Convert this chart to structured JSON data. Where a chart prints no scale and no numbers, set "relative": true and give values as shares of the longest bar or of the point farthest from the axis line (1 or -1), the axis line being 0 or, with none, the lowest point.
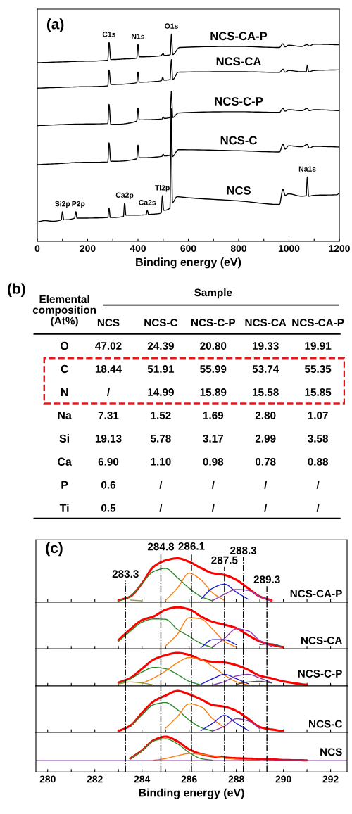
{
  "chart_data": [
    {
      "type": "line",
      "title": "(a)",
      "xlabel": "Binding energy (eV)",
      "relative": true,
      "line_style": "solid",
      "xlim": [
        0,
        1200
      ],
      "xticks": [
        0,
        {
          "value": 100,
          "label": null
        },
        200,
        {
          "value": 300,
          "label": null
        },
        400,
        {
          "value": 500,
          "label": null
        },
        600,
        {
          "value": 700,
          "label": null
        },
        800,
        {
          "value": 900,
          "label": null
        },
        1000,
        {
          "value": 1100,
          "label": null
        },
        1200
      ],
      "series": [
        {
          "name": "NCS-CA-P",
          "color": "#000000",
          "x": [
            0,
            150,
            280,
            285,
            292,
            350,
            395,
            400,
            405,
            490,
            500,
            505,
            528,
            533,
            538,
            565,
            800,
            962,
            976,
            985,
            998,
            1050,
            1072,
            1080,
            1100,
            1200
          ],
          "values": [
            0.862,
            0.868,
            0.874,
            0.96,
            0.877,
            0.88,
            0.884,
            0.95,
            0.89,
            0.895,
            0.905,
            0.897,
            0.9,
            1.0,
            0.901,
            0.935,
            0.94,
            0.935,
            0.953,
            0.938,
            0.946,
            0.94,
            0.949,
            0.943,
            0.951,
            0.948
          ]
        },
        {
          "name": "NCS-CA",
          "color": "#000000",
          "x": [
            0,
            150,
            280,
            285,
            292,
            395,
            400,
            405,
            493,
            498,
            503,
            527,
            533,
            538,
            560,
            800,
            962,
            976,
            985,
            998,
            1050,
            1068,
            1073,
            1078,
            1100,
            1200
          ],
          "values": [
            0.739,
            0.745,
            0.75,
            0.826,
            0.757,
            0.765,
            0.816,
            0.768,
            0.775,
            0.791,
            0.778,
            0.78,
            0.877,
            0.78,
            0.816,
            0.818,
            0.815,
            0.83,
            0.816,
            0.824,
            0.818,
            0.818,
            0.849,
            0.818,
            0.824,
            0.827
          ]
        },
        {
          "name": "NCS-C-P",
          "color": "#000000",
          "x": [
            0,
            150,
            280,
            285,
            292,
            395,
            400,
            405,
            495,
            500,
            505,
            527,
            533,
            538,
            560,
            800,
            962,
            976,
            985,
            998,
            1050,
            1073,
            1080,
            1100,
            1200
          ],
          "values": [
            0.558,
            0.565,
            0.568,
            0.66,
            0.564,
            0.58,
            0.643,
            0.586,
            0.59,
            0.6,
            0.593,
            0.597,
            0.724,
            0.597,
            0.619,
            0.625,
            0.622,
            0.641,
            0.628,
            0.635,
            0.63,
            0.641,
            0.63,
            0.635,
            0.63
          ]
        },
        {
          "name": "NCS-C",
          "color": "#000000",
          "x": [
            0,
            100,
            150,
            280,
            285,
            292,
            395,
            400,
            405,
            495,
            500,
            505,
            527,
            532,
            537,
            560,
            800,
            962,
            976,
            985,
            998,
            1050,
            1073,
            1080,
            1100,
            1200
          ],
          "values": [
            0.37,
            0.376,
            0.38,
            0.383,
            0.475,
            0.386,
            0.398,
            0.464,
            0.403,
            0.41,
            0.42,
            0.412,
            0.415,
            0.568,
            0.409,
            0.442,
            0.437,
            0.431,
            0.467,
            0.445,
            0.461,
            0.456,
            0.467,
            0.45,
            0.458,
            0.455
          ]
        },
        {
          "name": "NCS",
          "color": "#000000",
          "x": [
            0,
            30,
            60,
            95,
            100,
            105,
            148,
            153,
            158,
            280,
            285,
            290,
            342,
            347,
            352,
            432,
            437,
            442,
            470,
            492,
            497,
            502,
            527,
            532,
            537,
            555,
            600,
            800,
            962,
            976,
            985,
            998,
            1050,
            1068,
            1073,
            1078,
            1100,
            1190,
            1200
          ],
          "values": [
            0.093,
            0.1,
            0.097,
            0.104,
            0.143,
            0.104,
            0.112,
            0.143,
            0.112,
            0.115,
            0.159,
            0.115,
            0.12,
            0.185,
            0.126,
            0.128,
            0.149,
            0.13,
            0.132,
            0.137,
            0.22,
            0.15,
            0.16,
            0.641,
            0.187,
            0.215,
            0.21,
            0.195,
            0.178,
            0.251,
            0.222,
            0.229,
            0.218,
            0.22,
            0.311,
            0.218,
            0.222,
            0.225,
            0.232
          ]
        }
      ],
      "annotations": [
        {
          "text": "C1s",
          "x": 285,
          "y": 0.96
        },
        {
          "text": "N1s",
          "x": 400,
          "y": 0.95
        },
        {
          "text": "O1s",
          "x": 533,
          "y": 1.0
        },
        {
          "text": "Si2p",
          "x": 100,
          "y": 0.143
        },
        {
          "text": "P2p",
          "x": 153,
          "y": 0.143
        },
        {
          "text": "Ca2p",
          "x": 347,
          "y": 0.185
        },
        {
          "text": "Ca2s",
          "x": 437,
          "y": 0.149
        },
        {
          "text": "Ti2p",
          "x": 497,
          "y": 0.22
        },
        {
          "text": "Na1s",
          "x": 1073,
          "y": 0.311
        }
      ]
    },
    {
      "type": "other",
      "title": "(b)",
      "ylabel": "Elemental\ncomposition\n(At%)",
      "xlabel": "Sample",
      "categories": [
        "NCS",
        "NCS-C",
        "NCS-C-P",
        "NCS-CA",
        "NCS-CA-P"
      ],
      "y_categories": [
        "O",
        "C",
        "N",
        "Na",
        "Si",
        "Ca",
        "P",
        "Ti"
      ],
      "cell_labels": [
        [
          "47.02",
          "24.39",
          "20.80",
          "19.33",
          "19.91"
        ],
        [
          "18.44",
          "51.91",
          "55.99",
          "53.74",
          "55.35"
        ],
        [
          "/",
          "14.99",
          "15.89",
          "15.58",
          "15.85"
        ],
        [
          "7.31",
          "1.52",
          "1.69",
          "2.80",
          "1.07"
        ],
        [
          "19.13",
          "5.78",
          "3.17",
          "2.99",
          "3.58"
        ],
        [
          "6.90",
          "1.10",
          "0.98",
          "0.78",
          "0.88"
        ],
        [
          "0.6",
          "/",
          "/",
          "/",
          "/"
        ],
        [
          "0.5",
          "/",
          "/",
          "/",
          "/"
        ]
      ]
    },
    {
      "type": "line",
      "title": "(c)",
      "relative": true,
      "tick_labels": false,
      "xlim": [
        279.5,
        292.7
      ],
      "xticks": [
        280,
        {
          "value": 281,
          "label": null
        },
        282,
        {
          "value": 283,
          "label": null
        },
        284,
        {
          "value": 285,
          "label": null
        },
        286,
        {
          "value": 287,
          "label": null
        },
        288,
        {
          "value": 289,
          "label": null
        },
        290,
        {
          "value": 291,
          "label": null
        },
        292
      ],
      "x": [
        283,
        283.5,
        284,
        284.5,
        285,
        285.5,
        286,
        286.5,
        287,
        287.5,
        288,
        288.5,
        289,
        289.5
      ],
      "series": [
        {
          "color": "#ff0000",
          "values": [
            0.04,
            0.13,
            0.43,
            0.81,
            0.95,
            1.0,
            0.92,
            0.78,
            0.66,
            0.62,
            0.51,
            0.32,
            0.13,
            0.04
          ]
        },
        {
          "color": "#2a8a2a",
          "values": [
            0.03,
            0.13,
            0.43,
            0.7,
            0.77,
            0.56,
            0.32,
            0.13,
            0.03,
            null,
            null,
            null,
            null,
            null
          ]
        },
        {
          "color": "#ff7f0e",
          "values": [
            null,
            null,
            null,
            null,
            0.04,
            0.32,
            0.66,
            0.51,
            0.21,
            0.04,
            null,
            null,
            null,
            null
          ]
        },
        {
          "color": "#2020d0",
          "values": [
            null,
            null,
            null,
            null,
            null,
            null,
            null,
            0.07,
            0.32,
            0.41,
            0.23,
            0.07,
            null,
            null
          ]
        },
        {
          "color": "#8e3ab0",
          "values": [
            null,
            null,
            null,
            null,
            null,
            null,
            null,
            null,
            0.04,
            0.18,
            0.29,
            0.27,
            0.13,
            0.03
          ]
        },
        {
          "color": "#9a9a3a",
          "values": [
            null,
            0.05,
            0.03,
            null,
            null,
            null,
            null,
            null,
            null,
            null,
            null,
            null,
            null,
            null
          ]
        }
      ],
      "ref_lines": [
        {
          "axis": "x",
          "value": 283.3,
          "label": "283.3",
          "color": "#000000",
          "line_style": "dashdot"
        },
        {
          "axis": "x",
          "value": 284.8,
          "label": "284.8",
          "color": "#000000",
          "line_style": "dashdot"
        },
        {
          "axis": "x",
          "value": 286.1,
          "label": "286.1",
          "color": "#000000",
          "line_style": "dashdot"
        },
        {
          "axis": "x",
          "value": 287.5,
          "label": "287.5",
          "color": "#000000",
          "line_style": "dashdot"
        },
        {
          "axis": "x",
          "value": 288.3,
          "label": "288.3",
          "color": "#000000",
          "line_style": "dashdot"
        },
        {
          "axis": "x",
          "value": 289.3,
          "label": "289.3",
          "color": "#000000",
          "line_style": "dashdot"
        }
      ],
      "annotations": [
        "NCS-CA-P"
      ]
    },
    {
      "type": "line",
      "relative": true,
      "tick_labels": false,
      "xlim": [
        279.5,
        292.7
      ],
      "xticks": [
        280,
        {
          "value": 281,
          "label": null
        },
        282,
        {
          "value": 283,
          "label": null
        },
        284,
        {
          "value": 285,
          "label": null
        },
        286,
        {
          "value": 287,
          "label": null
        },
        288,
        {
          "value": 289,
          "label": null
        },
        290,
        {
          "value": 291,
          "label": null
        },
        292
      ],
      "x": [
        283,
        283.5,
        284,
        284.5,
        285,
        285.5,
        286,
        286.5,
        287,
        287.5,
        288,
        288.5,
        289,
        289.5,
        290
      ],
      "series": [
        {
          "color": "#ff0000",
          "values": [
            0.21,
            0.47,
            0.69,
            0.78,
            0.94,
            1.0,
            0.95,
            0.78,
            0.65,
            0.58,
            0.5,
            0.33,
            0.18,
            0.1,
            0.04
          ]
        },
        {
          "color": "#2a8a2a",
          "values": [
            0.18,
            0.42,
            0.64,
            0.72,
            0.71,
            0.47,
            0.3,
            0.13,
            0.03,
            null,
            null,
            null,
            null,
            null,
            null
          ]
        },
        {
          "color": "#ff7f0e",
          "values": [
            null,
            null,
            null,
            null,
            0.07,
            0.35,
            0.75,
            0.72,
            0.47,
            0.18,
            0.04,
            null,
            null,
            null,
            null
          ]
        },
        {
          "color": "#2020d0",
          "values": [
            null,
            null,
            null,
            null,
            null,
            null,
            null,
            0.03,
            0.22,
            0.22,
            0.1,
            null,
            null,
            null,
            null
          ]
        },
        {
          "color": "#8e3ab0",
          "values": [
            null,
            null,
            null,
            null,
            null,
            null,
            null,
            null,
            0.05,
            0.25,
            0.48,
            0.43,
            0.2,
            0.06,
            null
          ]
        },
        {
          "color": "#505050",
          "values": [
            null,
            null,
            null,
            null,
            null,
            null,
            null,
            null,
            null,
            null,
            null,
            null,
            0.1,
            0.12,
            0.04
          ]
        }
      ],
      "ref_lines": [
        {
          "axis": "x",
          "value": 283.3,
          "color": "#000000",
          "line_style": "dashdot"
        },
        {
          "axis": "x",
          "value": 284.8,
          "color": "#000000",
          "line_style": "dashdot"
        },
        {
          "axis": "x",
          "value": 286.1,
          "color": "#000000",
          "line_style": "dashdot"
        },
        {
          "axis": "x",
          "value": 287.5,
          "color": "#000000",
          "line_style": "dashdot"
        },
        {
          "axis": "x",
          "value": 288.3,
          "color": "#000000",
          "line_style": "dashdot"
        },
        {
          "axis": "x",
          "value": 289.3,
          "color": "#000000",
          "line_style": "dashdot"
        }
      ],
      "annotations": [
        "NCS-CA"
      ]
    },
    {
      "type": "line",
      "relative": true,
      "tick_labels": false,
      "xlim": [
        279.5,
        292.7
      ],
      "xticks": [
        280,
        {
          "value": 281,
          "label": null
        },
        282,
        {
          "value": 283,
          "label": null
        },
        284,
        {
          "value": 285,
          "label": null
        },
        286,
        {
          "value": 287,
          "label": null
        },
        288,
        {
          "value": 289,
          "label": null
        },
        290,
        {
          "value": 291,
          "label": null
        },
        292
      ],
      "x": [
        283,
        283.5,
        284,
        284.5,
        285,
        285.5,
        286,
        286.5,
        287,
        287.5,
        288,
        288.5,
        289,
        289.5,
        290,
        291
      ],
      "series": [
        {
          "color": "#ff0000",
          "values": [
            0.1,
            0.24,
            0.52,
            0.8,
            0.93,
            1.0,
            0.94,
            0.8,
            0.73,
            0.71,
            0.63,
            0.49,
            0.31,
            0.23,
            0.14,
            0.03
          ]
        },
        {
          "color": "#2a8a2a",
          "values": [
            0.07,
            0.21,
            0.42,
            0.56,
            0.52,
            0.35,
            0.14,
            0.03,
            null,
            null,
            null,
            null,
            null,
            null,
            null,
            null
          ]
        },
        {
          "color": "#ff7f0e",
          "values": [
            null,
            null,
            0.08,
            0.24,
            0.45,
            0.7,
            0.86,
            0.8,
            0.59,
            0.33,
            0.13,
            0.03,
            null,
            null,
            null,
            null
          ]
        },
        {
          "color": "#2020d0",
          "values": [
            null,
            null,
            null,
            null,
            null,
            null,
            null,
            0.05,
            0.22,
            0.35,
            0.22,
            0.07,
            null,
            null,
            null,
            null
          ]
        },
        {
          "color": "#8e3ab0",
          "values": [
            null,
            null,
            null,
            null,
            null,
            null,
            null,
            null,
            0.03,
            0.13,
            0.3,
            0.35,
            0.24,
            0.1,
            null,
            null
          ]
        },
        {
          "color": "#505050",
          "values": [
            null,
            null,
            null,
            null,
            null,
            null,
            null,
            null,
            null,
            null,
            0.05,
            0.12,
            0.14,
            0.09,
            null,
            null
          ]
        },
        {
          "color": "#9a9a3a",
          "values": [
            0.06,
            0.12,
            0.09,
            0.03,
            null,
            null,
            null,
            null,
            null,
            null,
            null,
            null,
            null,
            null,
            null,
            null
          ]
        }
      ],
      "ref_lines": [
        {
          "axis": "x",
          "value": 283.3,
          "color": "#000000",
          "line_style": "dashdot"
        },
        {
          "axis": "x",
          "value": 284.8,
          "color": "#000000",
          "line_style": "dashdot"
        },
        {
          "axis": "x",
          "value": 286.1,
          "color": "#000000",
          "line_style": "dashdot"
        },
        {
          "axis": "x",
          "value": 287.5,
          "color": "#000000",
          "line_style": "dashdot"
        },
        {
          "axis": "x",
          "value": 288.3,
          "color": "#000000",
          "line_style": "dashdot"
        },
        {
          "axis": "x",
          "value": 289.3,
          "color": "#000000",
          "line_style": "dashdot"
        }
      ],
      "annotations": [
        "NCS-C-P"
      ]
    },
    {
      "type": "line",
      "relative": true,
      "tick_labels": false,
      "xlim": [
        279.5,
        292.7
      ],
      "xticks": [
        280,
        {
          "value": 281,
          "label": null
        },
        282,
        {
          "value": 283,
          "label": null
        },
        284,
        {
          "value": 285,
          "label": null
        },
        286,
        {
          "value": 287,
          "label": null
        },
        288,
        {
          "value": 289,
          "label": null
        },
        290,
        {
          "value": 291,
          "label": null
        },
        292
      ],
      "x": [
        283,
        283.5,
        284,
        284.5,
        285,
        285.5,
        286,
        286.5,
        287,
        287.5,
        288,
        288.5,
        289,
        289.5,
        290
      ],
      "series": [
        {
          "color": "#ff0000",
          "values": [
            0.03,
            0.16,
            0.47,
            0.75,
            0.89,
            1.0,
            0.92,
            0.8,
            0.66,
            0.62,
            0.52,
            0.33,
            0.13,
            0.07,
            0.03
          ]
        },
        {
          "color": "#2a8a2a",
          "values": [
            null,
            0.13,
            0.42,
            0.67,
            0.72,
            0.55,
            0.3,
            0.12,
            0.03,
            null,
            null,
            null,
            null,
            null,
            null
          ]
        },
        {
          "color": "#ff7f0e",
          "values": [
            null,
            null,
            null,
            null,
            0.1,
            0.38,
            0.69,
            0.62,
            0.33,
            0.11,
            null,
            null,
            null,
            null,
            null
          ]
        },
        {
          "color": "#2020d0",
          "values": [
            null,
            null,
            null,
            null,
            null,
            null,
            null,
            0.04,
            0.22,
            0.41,
            0.22,
            0.05,
            null,
            null,
            null
          ]
        },
        {
          "color": "#8e3ab0",
          "values": [
            null,
            null,
            null,
            null,
            null,
            null,
            null,
            null,
            0.03,
            0.15,
            0.33,
            0.28,
            0.09,
            null,
            null
          ]
        }
      ],
      "ref_lines": [
        {
          "axis": "x",
          "value": 283.3,
          "color": "#000000",
          "line_style": "dashdot"
        },
        {
          "axis": "x",
          "value": 284.8,
          "color": "#000000",
          "line_style": "dashdot"
        },
        {
          "axis": "x",
          "value": 286.1,
          "color": "#000000",
          "line_style": "dashdot"
        },
        {
          "axis": "x",
          "value": 287.5,
          "color": "#000000",
          "line_style": "dashdot"
        },
        {
          "axis": "x",
          "value": 288.3,
          "color": "#000000",
          "line_style": "dashdot"
        },
        {
          "axis": "x",
          "value": 289.3,
          "color": "#000000",
          "line_style": "dashdot"
        }
      ],
      "annotations": [
        "NCS-C"
      ]
    },
    {
      "type": "line",
      "relative": true,
      "tick_labels": "x",
      "xlabel": "Binding energy (eV)",
      "xlim": [
        279.5,
        292.7
      ],
      "xticks": [
        280,
        {
          "value": 281,
          "label": null
        },
        282,
        {
          "value": 283,
          "label": null
        },
        284,
        {
          "value": 285,
          "label": null
        },
        286,
        {
          "value": 287,
          "label": null
        },
        288,
        {
          "value": 289,
          "label": null
        },
        290,
        {
          "value": 291,
          "label": null
        },
        292
      ],
      "x": [
        279.5,
        282,
        283,
        283.5,
        284,
        284.5,
        285,
        285.5,
        286,
        286.5,
        287,
        287.5,
        288,
        288.5,
        289,
        289.5,
        290,
        291,
        292.7
      ],
      "series": [
        {
          "color": "#ff0000",
          "values": [
            null,
            null,
            null,
            0.38,
            0.61,
            0.9,
            1.0,
            0.87,
            0.64,
            0.51,
            0.44,
            0.41,
            0.39,
            0.38,
            0.37,
            0.36,
            0.34,
            0.33,
            null
          ]
        },
        {
          "color": "#2a8a2a",
          "values": [
            null,
            null,
            null,
            0.37,
            0.6,
            0.88,
            0.94,
            0.8,
            0.55,
            0.38,
            0.33,
            null,
            null,
            null,
            null,
            null,
            null,
            null,
            null
          ]
        },
        {
          "color": "#ff7f0e",
          "values": [
            null,
            null,
            null,
            null,
            null,
            0.33,
            0.38,
            0.46,
            0.52,
            0.5,
            0.45,
            0.4,
            0.36,
            0.34,
            0.33,
            null,
            null,
            null,
            null
          ]
        },
        {
          "color": "#8e3ab0",
          "values": [
            0.32,
            0.32,
            0.32,
            0.32,
            0.32,
            0.32,
            0.32,
            0.32,
            0.32,
            0.32,
            0.32,
            0.32,
            0.32,
            0.32,
            0.32,
            0.32,
            0.32,
            0.32,
            0.32
          ]
        }
      ],
      "ref_lines": [
        {
          "axis": "x",
          "value": 283.3,
          "color": "#000000",
          "line_style": "dashdot"
        },
        {
          "axis": "x",
          "value": 284.8,
          "color": "#000000",
          "line_style": "dashdot"
        },
        {
          "axis": "x",
          "value": 286.1,
          "color": "#000000",
          "line_style": "dashdot"
        },
        {
          "axis": "x",
          "value": 287.5,
          "color": "#000000",
          "line_style": "dashdot"
        },
        {
          "axis": "x",
          "value": 288.3,
          "color": "#000000",
          "line_style": "dashdot"
        },
        {
          "axis": "x",
          "value": 289.3,
          "color": "#000000",
          "line_style": "dashdot"
        }
      ],
      "annotations": [
        "NCS"
      ]
    }
  ]
}
